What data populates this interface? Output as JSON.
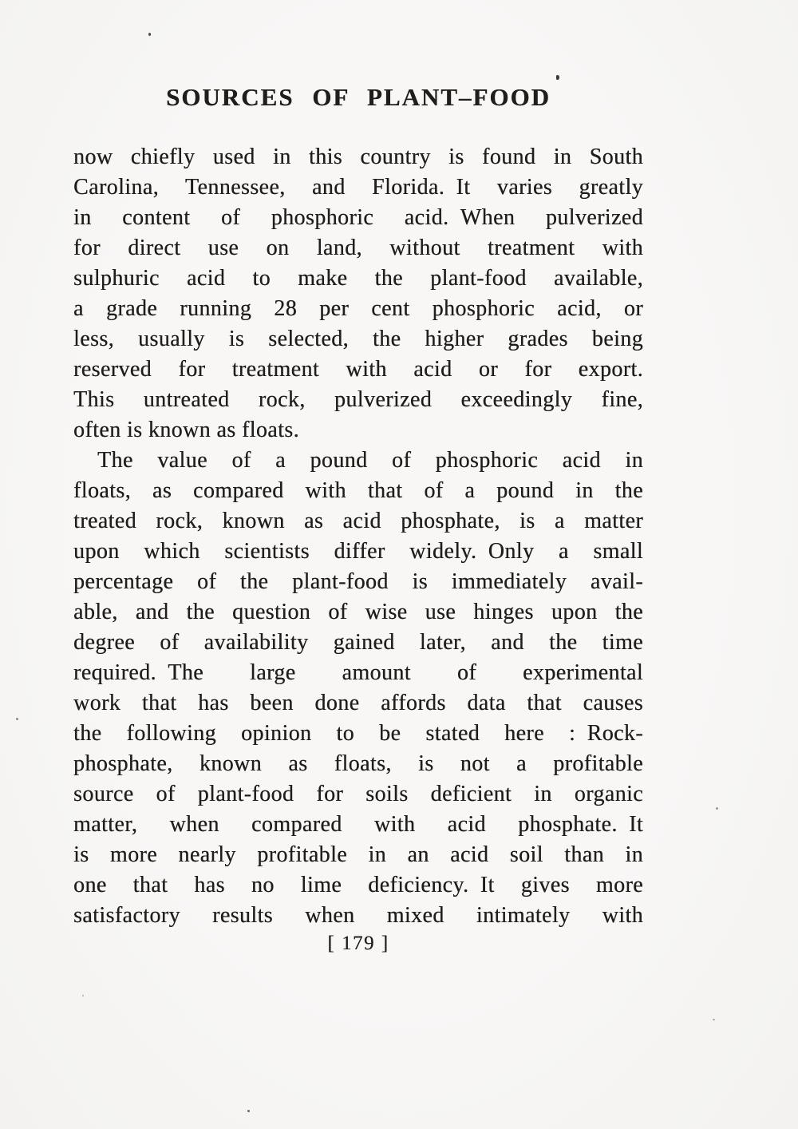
{
  "page": {
    "title": "SOURCES OF PLANT–FOOD",
    "page_number": "[ 179 ]",
    "paragraphs": [
      {
        "indent_first_line": false,
        "justify_last_line": false,
        "lines": [
          "now chiefly used in this country is found in South",
          "Carolina, Tennessee, and Florida. It varies greatly",
          "in content of phosphoric acid. When pulverized",
          "for direct use on land, without treatment with",
          "sulphuric acid to make the plant-food available,",
          "a grade running 28 per cent phosphoric acid, or",
          "less, usually is selected, the higher grades being",
          "reserved for treatment with acid or for export.",
          "This untreated rock, pulverized exceedingly fine,",
          "often is known as floats."
        ]
      },
      {
        "indent_first_line": true,
        "justify_last_line": true,
        "lines": [
          "The value of a pound of phosphoric acid in",
          "floats, as compared with that of a pound in the",
          "treated rock, known as acid phosphate, is a matter",
          "upon which scientists differ widely. Only a small",
          "percentage of the plant-food is immediately avail-",
          "able, and the question of wise use hinges upon the",
          "degree of availability gained later, and the time",
          "required. The large amount of experimental",
          "work that has been done affords data that causes",
          "the following opinion to be stated here : Rock-",
          "phosphate, known as floats, is not a profitable",
          "source of plant-food for soils deficient in organic",
          "matter, when compared with acid phosphate. It",
          "is more nearly profitable in an acid soil than in",
          "one that has no lime deficiency. It gives more",
          "satisfactory results when mixed intimately with"
        ]
      }
    ]
  },
  "colors": {
    "paper": "#f6f5f3",
    "ink": "#201e1b"
  }
}
